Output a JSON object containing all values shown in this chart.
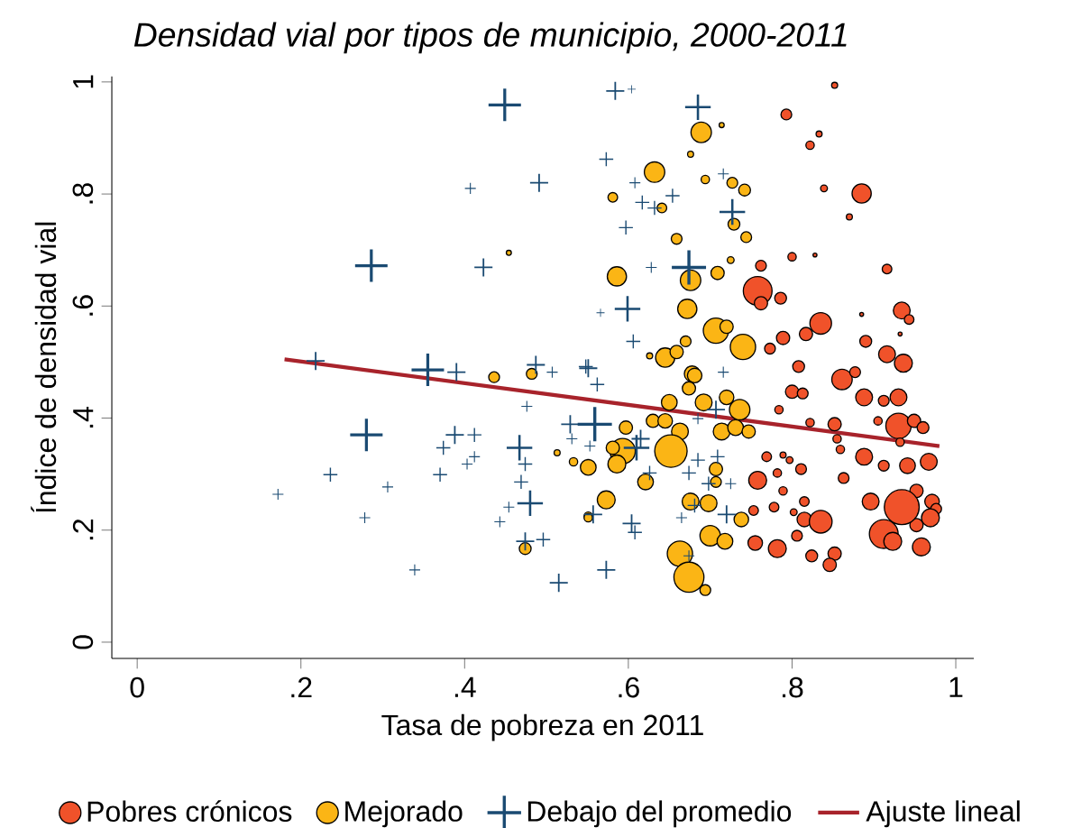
{
  "chart_data": {
    "type": "bubble",
    "title": "Densidad vial por tipos de municipio, 2000-2011",
    "xlabel": "Tasa de pobreza en 2011",
    "ylabel": "Índice de densidad vial",
    "xlim": [
      -0.031,
      1.022
    ],
    "ylim": [
      -0.029,
      1.01
    ],
    "xticks": [
      0,
      {
        "value": 0.2,
        "label": ".2"
      },
      {
        "value": 0.4,
        "label": ".4"
      },
      {
        "value": 0.6,
        "label": ".6"
      },
      {
        "value": 0.8,
        "label": ".8"
      },
      1
    ],
    "yticks": [
      0,
      {
        "value": 0.2,
        "label": ".2"
      },
      {
        "value": 0.4,
        "label": ".4"
      },
      {
        "value": 0.6,
        "label": ".6"
      },
      {
        "value": 0.8,
        "label": ".8"
      },
      1
    ],
    "legend": "bottom",
    "series": [
      {
        "name": "Pobres crónicos",
        "color": "#f0522a",
        "marker": "circle",
        "x": [
          0.852,
          0.793,
          0.833,
          0.822,
          0.839,
          0.885,
          0.87,
          0.762,
          0.8,
          0.828,
          0.916,
          0.758,
          0.762,
          0.786,
          0.835,
          0.817,
          0.789,
          0.773,
          0.89,
          0.934,
          0.943,
          0.916,
          0.936,
          0.808,
          0.885,
          0.932,
          0.861,
          0.877,
          0.888,
          0.93,
          0.912,
          0.8,
          0.813,
          0.784,
          0.822,
          0.852,
          0.855,
          0.859,
          0.905,
          0.93,
          0.949,
          0.96,
          0.932,
          0.888,
          0.912,
          0.941,
          0.967,
          0.769,
          0.789,
          0.797,
          0.782,
          0.758,
          0.789,
          0.811,
          0.815,
          0.778,
          0.802,
          0.753,
          0.815,
          0.835,
          0.806,
          0.755,
          0.782,
          0.824,
          0.852,
          0.846,
          0.863,
          0.896,
          0.934,
          0.952,
          0.971,
          0.976,
          0.969,
          0.952,
          0.912,
          0.923,
          0.958
        ],
        "values": [
          0.994,
          0.942,
          0.907,
          0.887,
          0.81,
          0.801,
          0.759,
          0.672,
          0.688,
          0.691,
          0.666,
          0.627,
          0.605,
          0.614,
          0.569,
          0.55,
          0.543,
          0.524,
          0.537,
          0.592,
          0.576,
          0.514,
          0.498,
          0.492,
          0.585,
          0.55,
          0.469,
          0.482,
          0.437,
          0.437,
          0.431,
          0.447,
          0.444,
          0.415,
          0.392,
          0.389,
          0.363,
          0.344,
          0.395,
          0.386,
          0.395,
          0.383,
          0.357,
          0.331,
          0.315,
          0.315,
          0.322,
          0.331,
          0.334,
          0.325,
          0.302,
          0.289,
          0.27,
          0.309,
          0.251,
          0.241,
          0.232,
          0.235,
          0.219,
          0.215,
          0.19,
          0.177,
          0.167,
          0.154,
          0.158,
          0.138,
          0.293,
          0.251,
          0.241,
          0.27,
          0.251,
          0.238,
          0.222,
          0.209,
          0.193,
          0.18,
          0.17
        ],
        "sizes": [
          0.04,
          0.11,
          0.04,
          0.07,
          0.05,
          0.32,
          0.04,
          0.11,
          0.07,
          0.02,
          0.09,
          0.69,
          0.16,
          0.13,
          0.4,
          0.16,
          0.16,
          0.11,
          0.13,
          0.25,
          0.09,
          0.25,
          0.28,
          0.13,
          0.02,
          0.02,
          0.36,
          0.11,
          0.25,
          0.25,
          0.11,
          0.16,
          0.11,
          0.07,
          0.07,
          0.16,
          0.07,
          0.07,
          0.07,
          0.54,
          0.16,
          0.13,
          0.07,
          0.25,
          0.11,
          0.22,
          0.25,
          0.09,
          0.04,
          0.05,
          0.07,
          0.28,
          0.07,
          0.11,
          0.09,
          0.09,
          0.05,
          0.09,
          0.19,
          0.44,
          0.11,
          0.19,
          0.28,
          0.13,
          0.16,
          0.16,
          0.11,
          0.25,
          1,
          0.16,
          0.19,
          0.11,
          0.28,
          0.16,
          0.69,
          0.28,
          0.28
        ]
      },
      {
        "name": "Mejorado",
        "color": "#fbb515",
        "marker": "circle",
        "x": [
          0.689,
          0.714,
          0.676,
          0.632,
          0.581,
          0.694,
          0.727,
          0.742,
          0.641,
          0.729,
          0.744,
          0.659,
          0.725,
          0.586,
          0.676,
          0.709,
          0.672,
          0.707,
          0.72,
          0.74,
          0.67,
          0.645,
          0.659,
          0.626,
          0.678,
          0.454,
          0.436,
          0.482,
          0.513,
          0.533,
          0.551,
          0.551,
          0.474,
          0.681,
          0.674,
          0.692,
          0.736,
          0.72,
          0.65,
          0.63,
          0.645,
          0.663,
          0.597,
          0.652,
          0.593,
          0.581,
          0.586,
          0.621,
          0.714,
          0.731,
          0.747,
          0.707,
          0.707,
          0.573,
          0.551,
          0.676,
          0.698,
          0.738,
          0.7,
          0.718,
          0.663,
          0.674,
          0.694
        ],
        "values": [
          0.91,
          0.923,
          0.871,
          0.839,
          0.794,
          0.826,
          0.82,
          0.807,
          0.775,
          0.746,
          0.723,
          0.72,
          0.682,
          0.653,
          0.646,
          0.659,
          0.595,
          0.556,
          0.563,
          0.527,
          0.537,
          0.508,
          0.518,
          0.511,
          0.479,
          0.695,
          0.473,
          0.479,
          0.338,
          0.322,
          0.312,
          0.225,
          0.167,
          0.476,
          0.453,
          0.428,
          0.415,
          0.437,
          0.428,
          0.395,
          0.395,
          0.376,
          0.383,
          0.341,
          0.341,
          0.347,
          0.318,
          0.286,
          0.376,
          0.383,
          0.376,
          0.309,
          0.286,
          0.254,
          0.222,
          0.251,
          0.248,
          0.219,
          0.19,
          0.18,
          0.158,
          0.116,
          0.093
        ],
        "sizes": [
          0.36,
          0.03,
          0.04,
          0.36,
          0.09,
          0.07,
          0.11,
          0.13,
          0.09,
          0.13,
          0.11,
          0.11,
          0.05,
          0.32,
          0.36,
          0.16,
          0.32,
          0.54,
          0.16,
          0.54,
          0.11,
          0.32,
          0.16,
          0.04,
          0.22,
          0.03,
          0.11,
          0.11,
          0.04,
          0.07,
          0.22,
          0.07,
          0.13,
          0.19,
          0.16,
          0.25,
          0.36,
          0.19,
          0.22,
          0.16,
          0.19,
          0.25,
          0.16,
          0.87,
          0.54,
          0.16,
          0.28,
          0.22,
          0.25,
          0.22,
          0.16,
          0.16,
          0.11,
          0.28,
          0.07,
          0.25,
          0.25,
          0.19,
          0.36,
          0.22,
          0.54,
          0.75,
          0.11
        ]
      },
      {
        "name": "Debajo del promedio",
        "color": "#1a4a72",
        "marker": "cross",
        "x": [
          0.449,
          0.491,
          0.407,
          0.286,
          0.423,
          0.218,
          0.355,
          0.39,
          0.487,
          0.507,
          0.551,
          0.28,
          0.172,
          0.236,
          0.306,
          0.278,
          0.339,
          0.374,
          0.388,
          0.412,
          0.412,
          0.37,
          0.403,
          0.467,
          0.474,
          0.469,
          0.48,
          0.454,
          0.443,
          0.496,
          0.474,
          0.515,
          0.476,
          0.529,
          0.531,
          0.553,
          0.584,
          0.604,
          0.685,
          0.573,
          0.608,
          0.617,
          0.632,
          0.654,
          0.716,
          0.727,
          0.597,
          0.628,
          0.674,
          0.566,
          0.599,
          0.606,
          0.548,
          0.716,
          0.562,
          0.559,
          0.615,
          0.61,
          0.626,
          0.674,
          0.685,
          0.709,
          0.698,
          0.725,
          0.557,
          0.604,
          0.608,
          0.681,
          0.72,
          0.665,
          0.573,
          0.674,
          0.707,
          0.685
        ],
        "values": [
          0.959,
          0.82,
          0.81,
          0.672,
          0.669,
          0.502,
          0.486,
          0.482,
          0.495,
          0.482,
          0.489,
          0.37,
          0.264,
          0.299,
          0.277,
          0.222,
          0.129,
          0.347,
          0.37,
          0.37,
          0.331,
          0.299,
          0.318,
          0.347,
          0.318,
          0.286,
          0.248,
          0.241,
          0.215,
          0.183,
          0.18,
          0.106,
          0.421,
          0.389,
          0.363,
          0.35,
          0.984,
          0.987,
          0.955,
          0.862,
          0.82,
          0.785,
          0.775,
          0.797,
          0.836,
          0.768,
          0.74,
          0.669,
          0.669,
          0.588,
          0.595,
          0.537,
          0.492,
          0.482,
          0.46,
          0.389,
          0.363,
          0.347,
          0.302,
          0.302,
          0.325,
          0.331,
          0.283,
          0.283,
          0.228,
          0.212,
          0.196,
          0.244,
          0.228,
          0.222,
          0.129,
          0.154,
          0.415,
          0.399
        ],
        "sizes": [
          0.177,
          0.055,
          0.02,
          0.177,
          0.055,
          0.055,
          0.177,
          0.055,
          0.055,
          0.02,
          0.055,
          0.177,
          0.02,
          0.033,
          0.02,
          0.02,
          0.02,
          0.033,
          0.055,
          0.033,
          0.02,
          0.033,
          0.02,
          0.11,
          0.033,
          0.033,
          0.11,
          0.02,
          0.02,
          0.033,
          0.055,
          0.055,
          0.02,
          0.055,
          0.02,
          0.02,
          0.055,
          0.011,
          0.11,
          0.033,
          0.02,
          0.033,
          0.033,
          0.033,
          0.02,
          0.11,
          0.033,
          0.02,
          0.197,
          0.011,
          0.11,
          0.033,
          0.033,
          0.02,
          0.033,
          0.197,
          0.055,
          0.11,
          0.033,
          0.033,
          0.033,
          0.033,
          0.033,
          0.02,
          0.055,
          0.055,
          0.033,
          0.033,
          0.055,
          0.02,
          0.055,
          0.02,
          0.055,
          0.02
        ]
      },
      {
        "name": "Ajuste lineal",
        "type": "line",
        "color": "#a8232b",
        "x": [
          0.18,
          0.98
        ],
        "values": [
          0.505,
          0.35
        ]
      }
    ]
  }
}
